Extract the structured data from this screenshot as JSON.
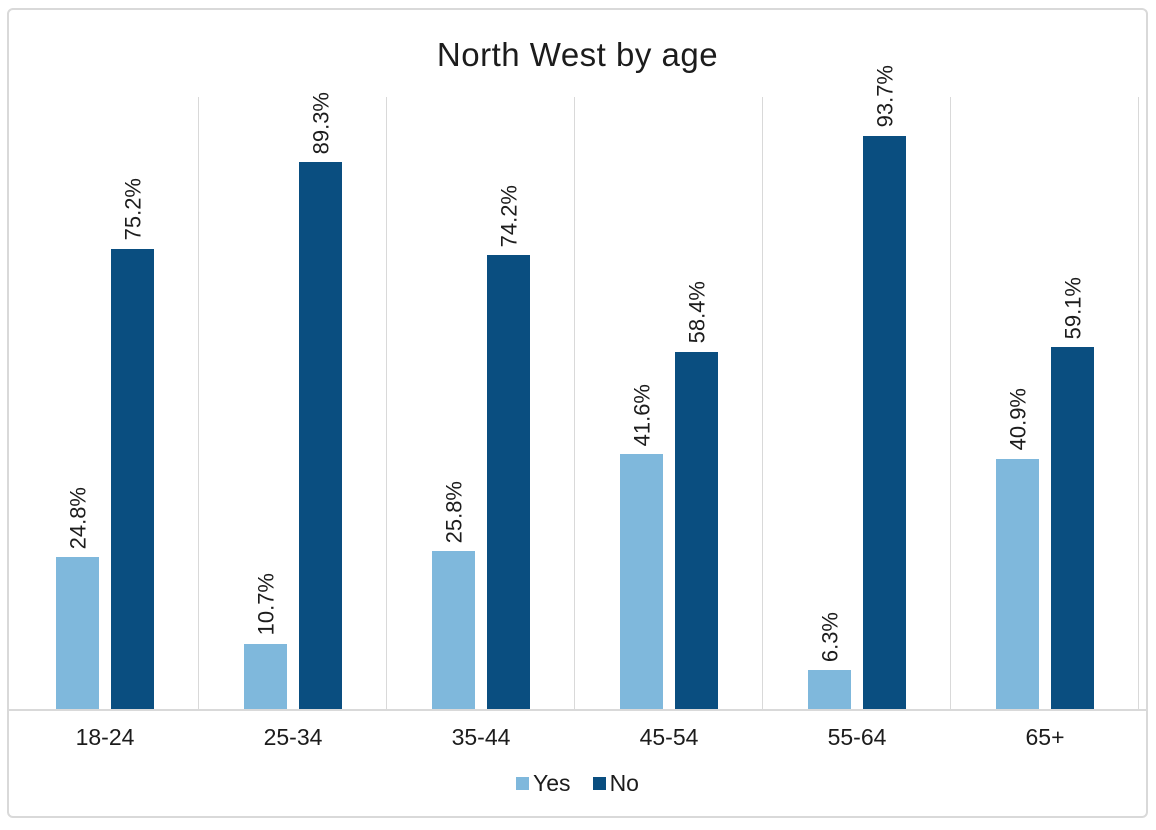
{
  "title": "North West by age",
  "colors": {
    "yes": "#7fb8dc",
    "no": "#0a4e80",
    "gridline": "#d9d9d9",
    "frame_border": "#d9d9d9",
    "text": "#1c1c1c"
  },
  "legend": {
    "items": [
      {
        "label": "Yes",
        "color_key": "yes"
      },
      {
        "label": "No",
        "color_key": "no"
      }
    ]
  },
  "chart_data": {
    "type": "bar",
    "title": "North West by age",
    "categories": [
      "18-24",
      "25-34",
      "35-44",
      "45-54",
      "55-64",
      "65+"
    ],
    "series": [
      {
        "name": "Yes",
        "color": "#7fb8dc",
        "values": [
          24.8,
          10.7,
          25.8,
          41.6,
          6.3,
          40.9
        ]
      },
      {
        "name": "No",
        "color": "#0a4e80",
        "values": [
          75.2,
          89.3,
          74.2,
          58.4,
          93.7,
          59.1
        ]
      }
    ],
    "value_suffix": "%",
    "data_label_decimals": 1,
    "data_labels": "rotated-vertical-above-bar",
    "xlabel": "",
    "ylabel": "",
    "ylim": [
      0,
      100
    ],
    "y_axis_visible": false,
    "grid": "vertical-category-separators",
    "legend_position": "bottom"
  }
}
